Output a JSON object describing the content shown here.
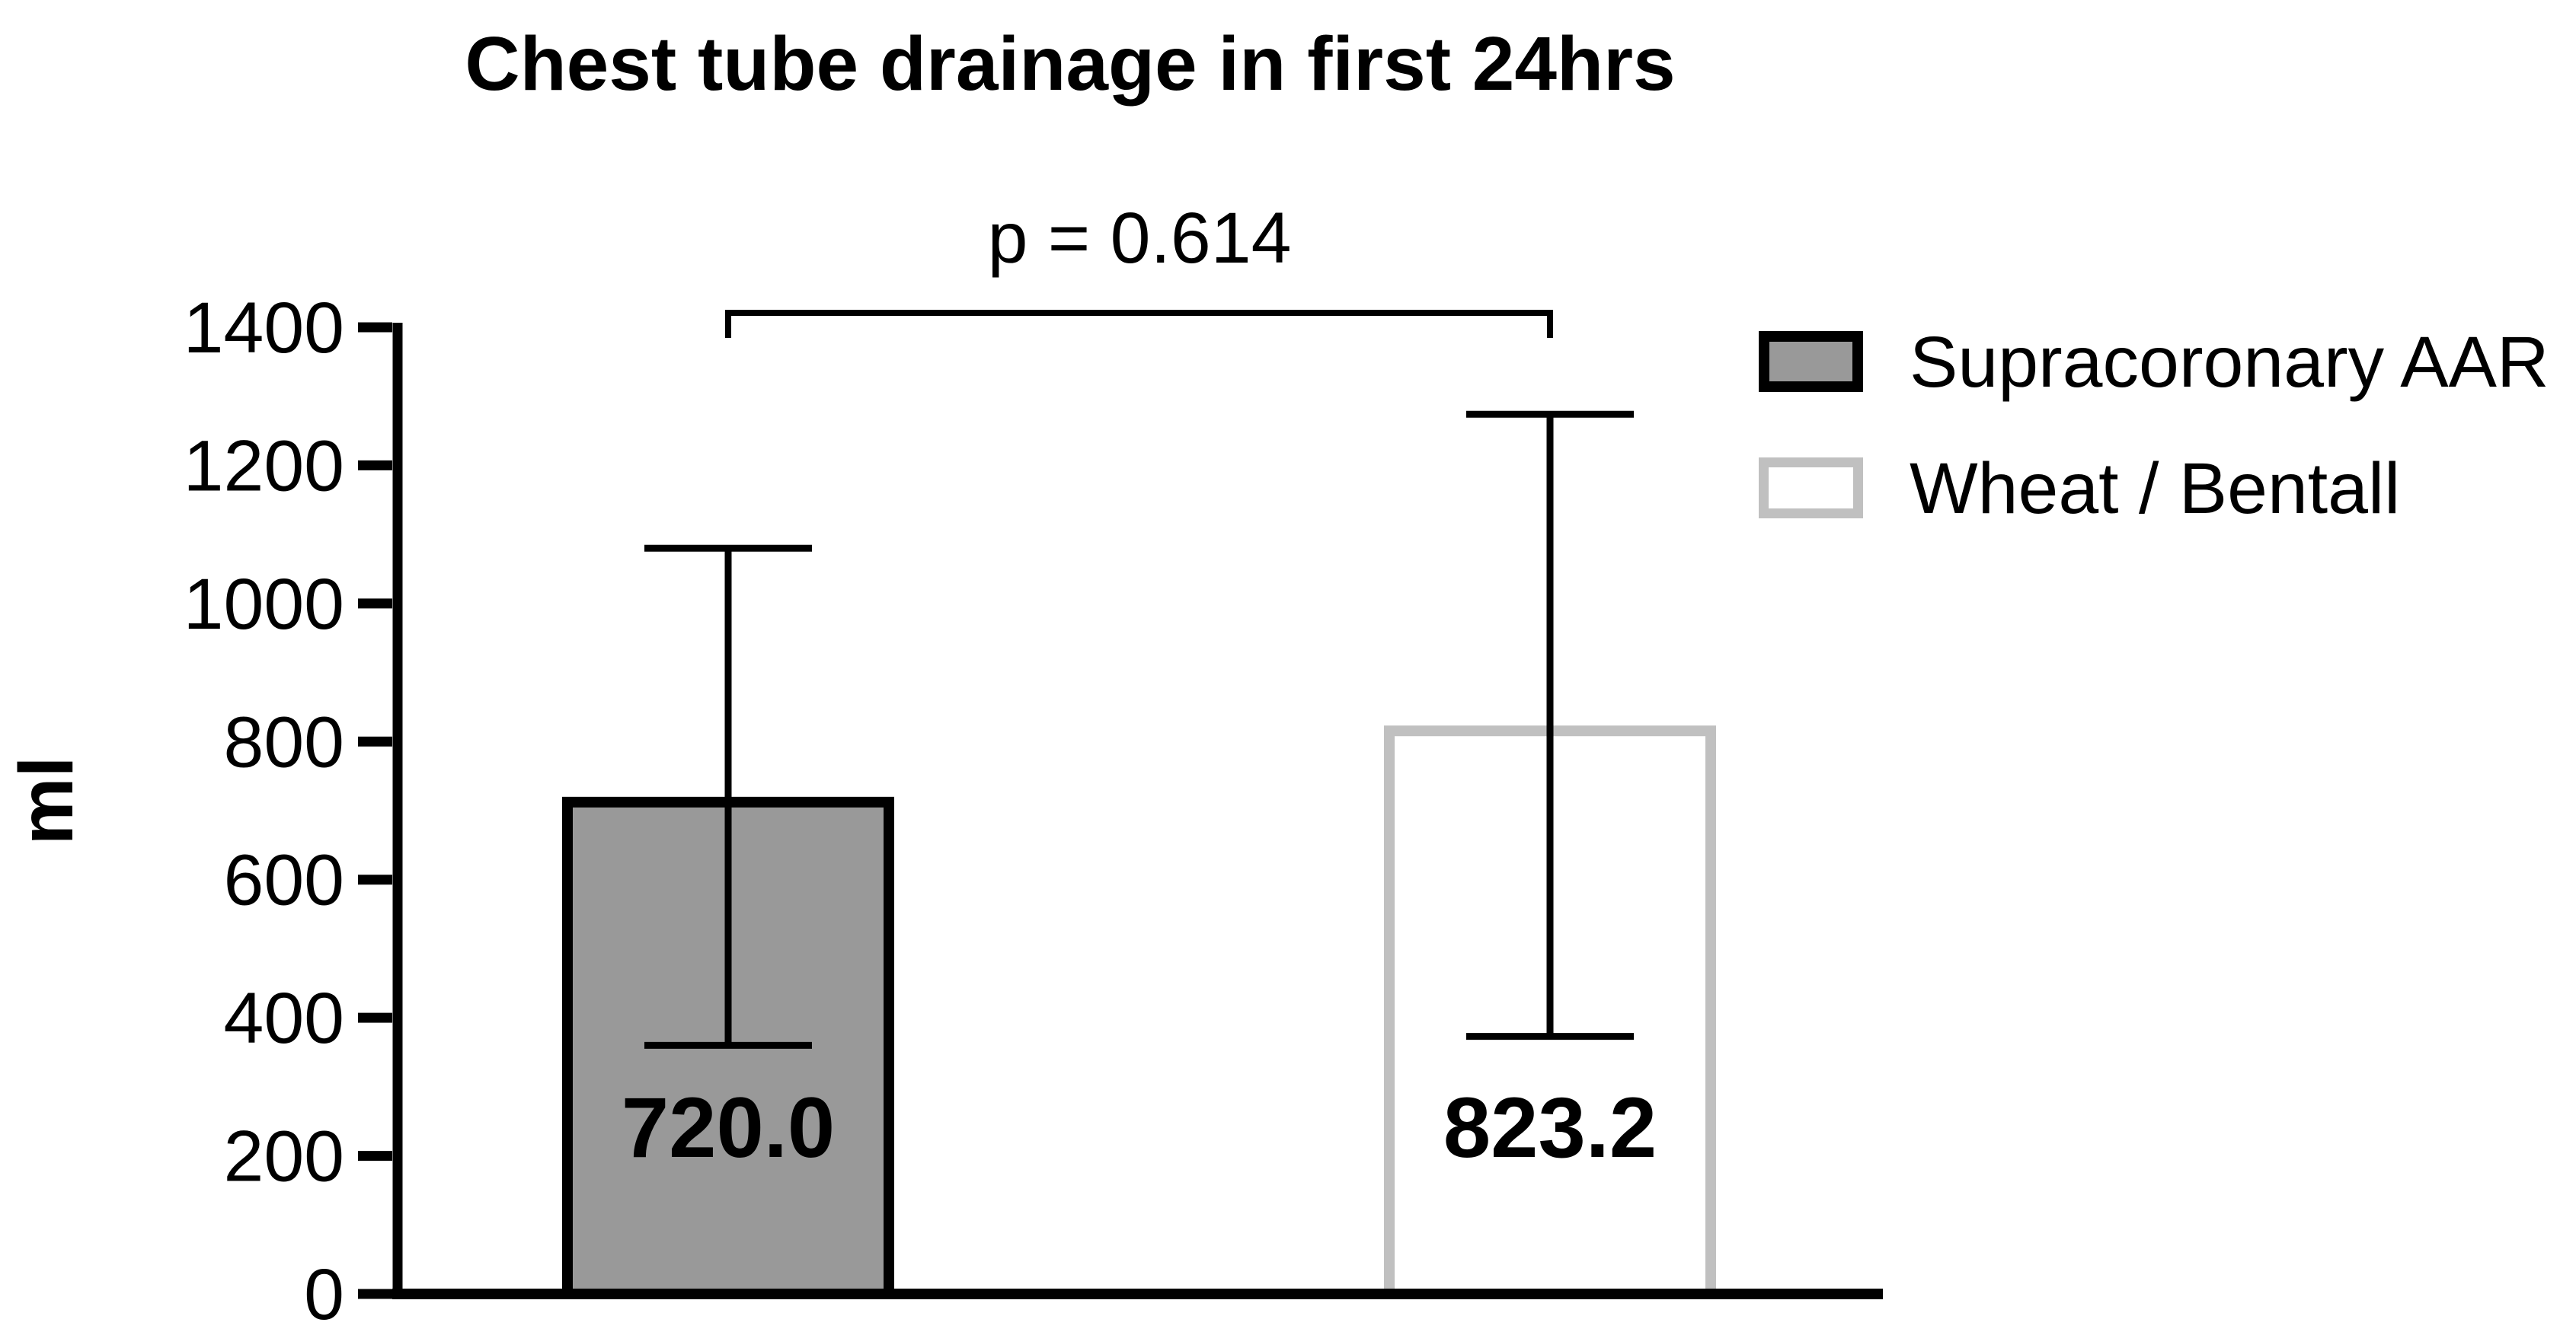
{
  "title": "Chest tube drainage in first 24hrs",
  "p_annotation": "p = 0.614",
  "ylabel": "ml",
  "colors": {
    "axis": "#000000",
    "text": "#000000",
    "background": "#FFFFFF",
    "bar1_fill": "#999999",
    "bar1_border": "#000000",
    "bar2_fill": "#FFFFFF",
    "bar2_border": "#C0C0C0"
  },
  "legend": {
    "items": [
      {
        "label": "Supracoronary AAR",
        "swatch_fill": "#999999",
        "swatch_border": "#000000"
      },
      {
        "label": "Wheat / Bentall",
        "swatch_fill": "#FFFFFF",
        "swatch_border": "#C0C0C0"
      }
    ],
    "position": "top-right"
  },
  "chart_data": {
    "type": "bar",
    "title": "Chest tube drainage in first 24hrs",
    "xlabel": "",
    "ylabel": "ml",
    "ylim": [
      0,
      1400
    ],
    "yticks": [
      0,
      200,
      400,
      600,
      800,
      1000,
      1200,
      1400
    ],
    "grid": false,
    "legend_position": "top-right",
    "annotation": {
      "text": "p = 0.614",
      "between": [
        "Supracoronary AAR",
        "Wheat / Bentall"
      ]
    },
    "categories": [
      "Supracoronary AAR",
      "Wheat / Bentall"
    ],
    "series": [
      {
        "name": "Supracoronary AAR",
        "value": 720.0,
        "value_label": "720.0",
        "whisker_low": 360,
        "whisker_high": 1080,
        "fill": "#999999",
        "border": "#000000"
      },
      {
        "name": "Wheat / Bentall",
        "value": 823.2,
        "value_label": "823.2",
        "whisker_low": 373,
        "whisker_high": 1274,
        "fill": "#FFFFFF",
        "border": "#C0C0C0"
      }
    ]
  }
}
